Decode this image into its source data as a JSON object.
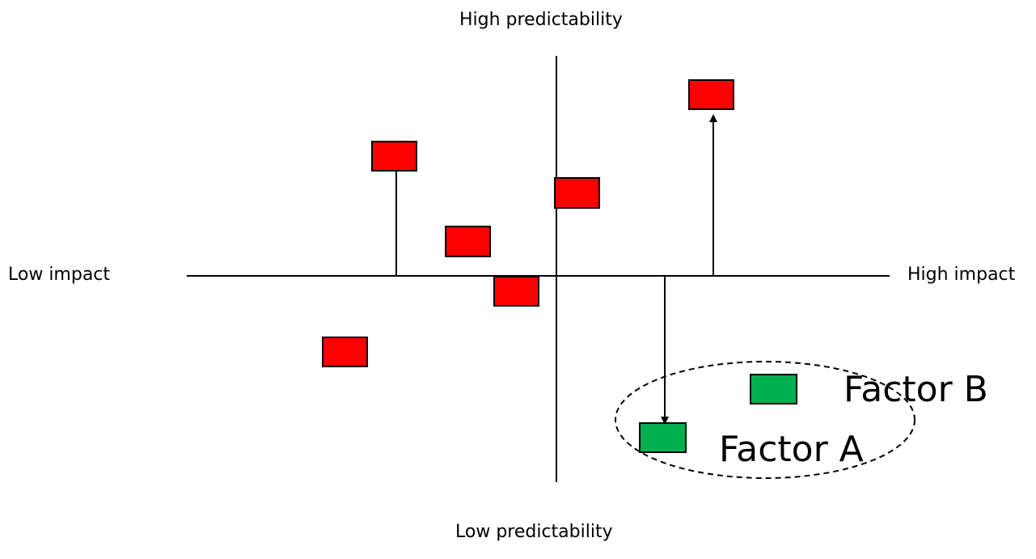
{
  "axes": {
    "top_label": "High predictability",
    "bottom_label": "Low predictability",
    "left_label": "Low impact",
    "right_label": "High impact"
  },
  "factors": {
    "a_label": "Factor A",
    "b_label": "Factor B"
  },
  "colors": {
    "risk_box": "#ff0000",
    "factor_box": "#00b050",
    "line": "#000000"
  }
}
